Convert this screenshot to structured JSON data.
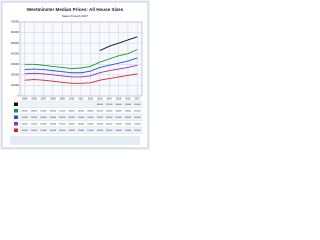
{
  "chart_data": {
    "type": "line",
    "title": "Westminster Median Prices: All House Sizes",
    "subtitle": "Sales through 2017",
    "categories": [
      "2005",
      "2006",
      "2007",
      "2008",
      "2009",
      "2010",
      "2011",
      "2012",
      "2013",
      "2014",
      "2015",
      "2016",
      "2017"
    ],
    "series": [
      {
        "color": "#111111",
        "values": [
          null,
          null,
          null,
          null,
          null,
          null,
          null,
          null,
          430000,
          470000,
          500000,
          530000,
          560000
        ]
      },
      {
        "color": "#1a9a2a",
        "values": [
          300000,
          300000,
          290000,
          280000,
          270000,
          260000,
          265000,
          280000,
          320000,
          350000,
          380000,
          400000,
          440000
        ]
      },
      {
        "color": "#2255dd",
        "values": [
          250000,
          255000,
          250000,
          240000,
          230000,
          220000,
          220000,
          235000,
          270000,
          290000,
          310000,
          330000,
          360000
        ]
      },
      {
        "color": "#9933aa",
        "values": [
          210000,
          215000,
          210000,
          200000,
          190000,
          180000,
          180000,
          190000,
          220000,
          240000,
          255000,
          270000,
          290000
        ]
      },
      {
        "color": "#dd2222",
        "values": [
          150000,
          155000,
          150000,
          140000,
          130000,
          120000,
          120000,
          125000,
          150000,
          165000,
          180000,
          195000,
          210000
        ]
      }
    ],
    "ylim": [
      0,
      700000
    ],
    "yticks": [
      0,
      100000,
      200000,
      300000,
      400000,
      500000,
      600000,
      700000
    ],
    "grid": true
  }
}
